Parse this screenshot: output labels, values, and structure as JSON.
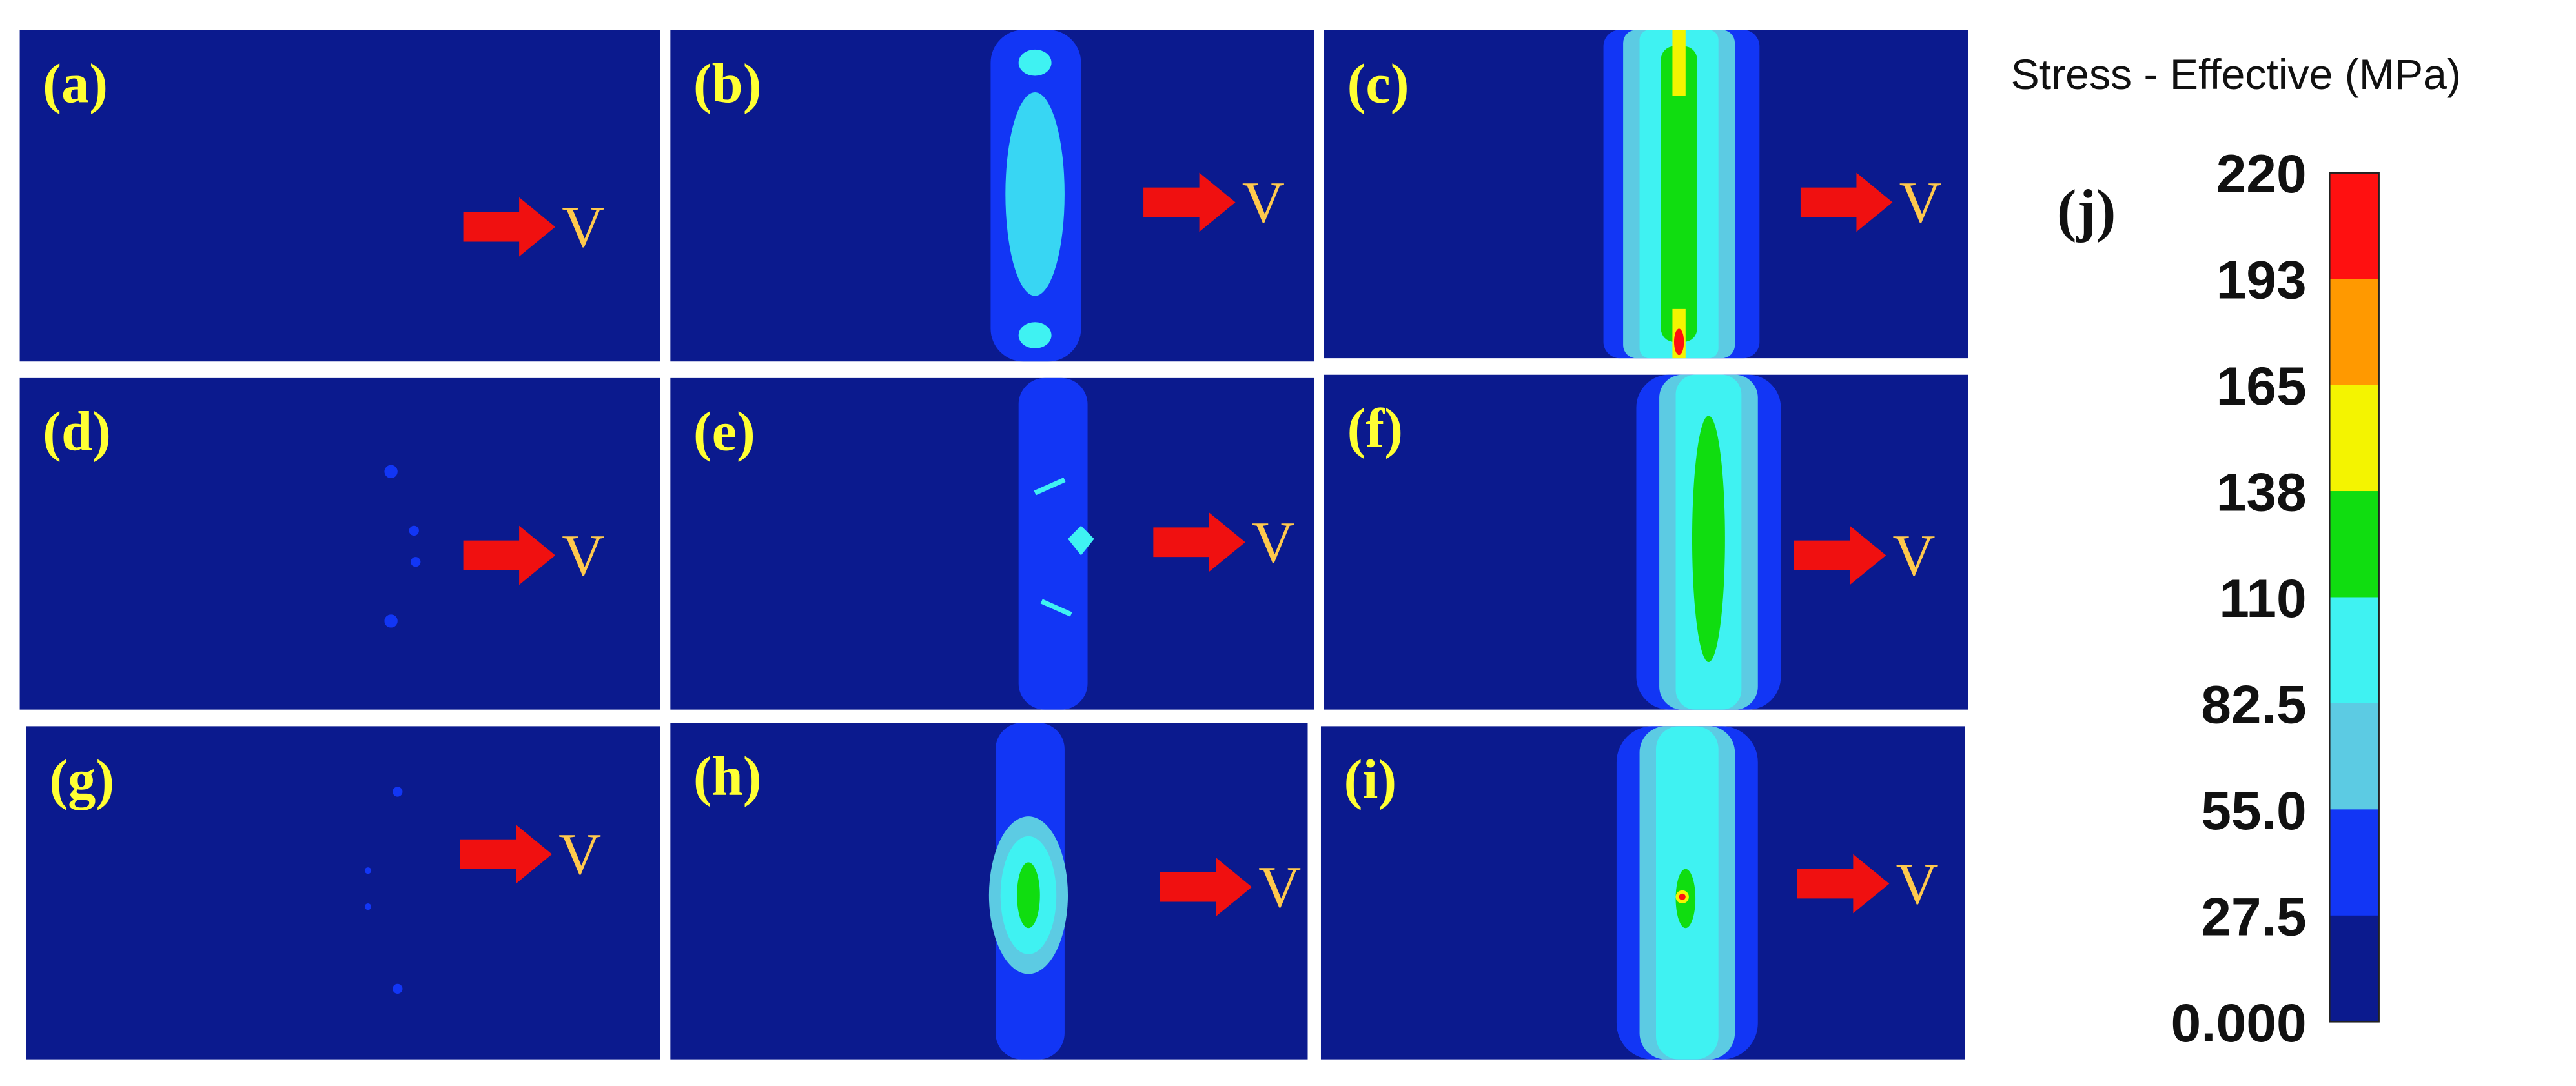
{
  "panels": [
    {
      "label": "(a)",
      "arrow_label": "V"
    },
    {
      "label": "(b)",
      "arrow_label": "V"
    },
    {
      "label": "(c)",
      "arrow_label": "V"
    },
    {
      "label": "(d)",
      "arrow_label": "V"
    },
    {
      "label": "(e)",
      "arrow_label": "V"
    },
    {
      "label": "(f)",
      "arrow_label": "V"
    },
    {
      "label": "(g)",
      "arrow_label": "V"
    },
    {
      "label": "(h)",
      "arrow_label": "V"
    },
    {
      "label": "(i)",
      "arrow_label": "V"
    }
  ],
  "legend": {
    "title": "Stress - Effective (MPa)",
    "label": "(j)",
    "ticks": [
      "220",
      "193",
      "165",
      "138",
      "110",
      "82.5",
      "55.0",
      "27.5",
      "0.000"
    ]
  }
}
